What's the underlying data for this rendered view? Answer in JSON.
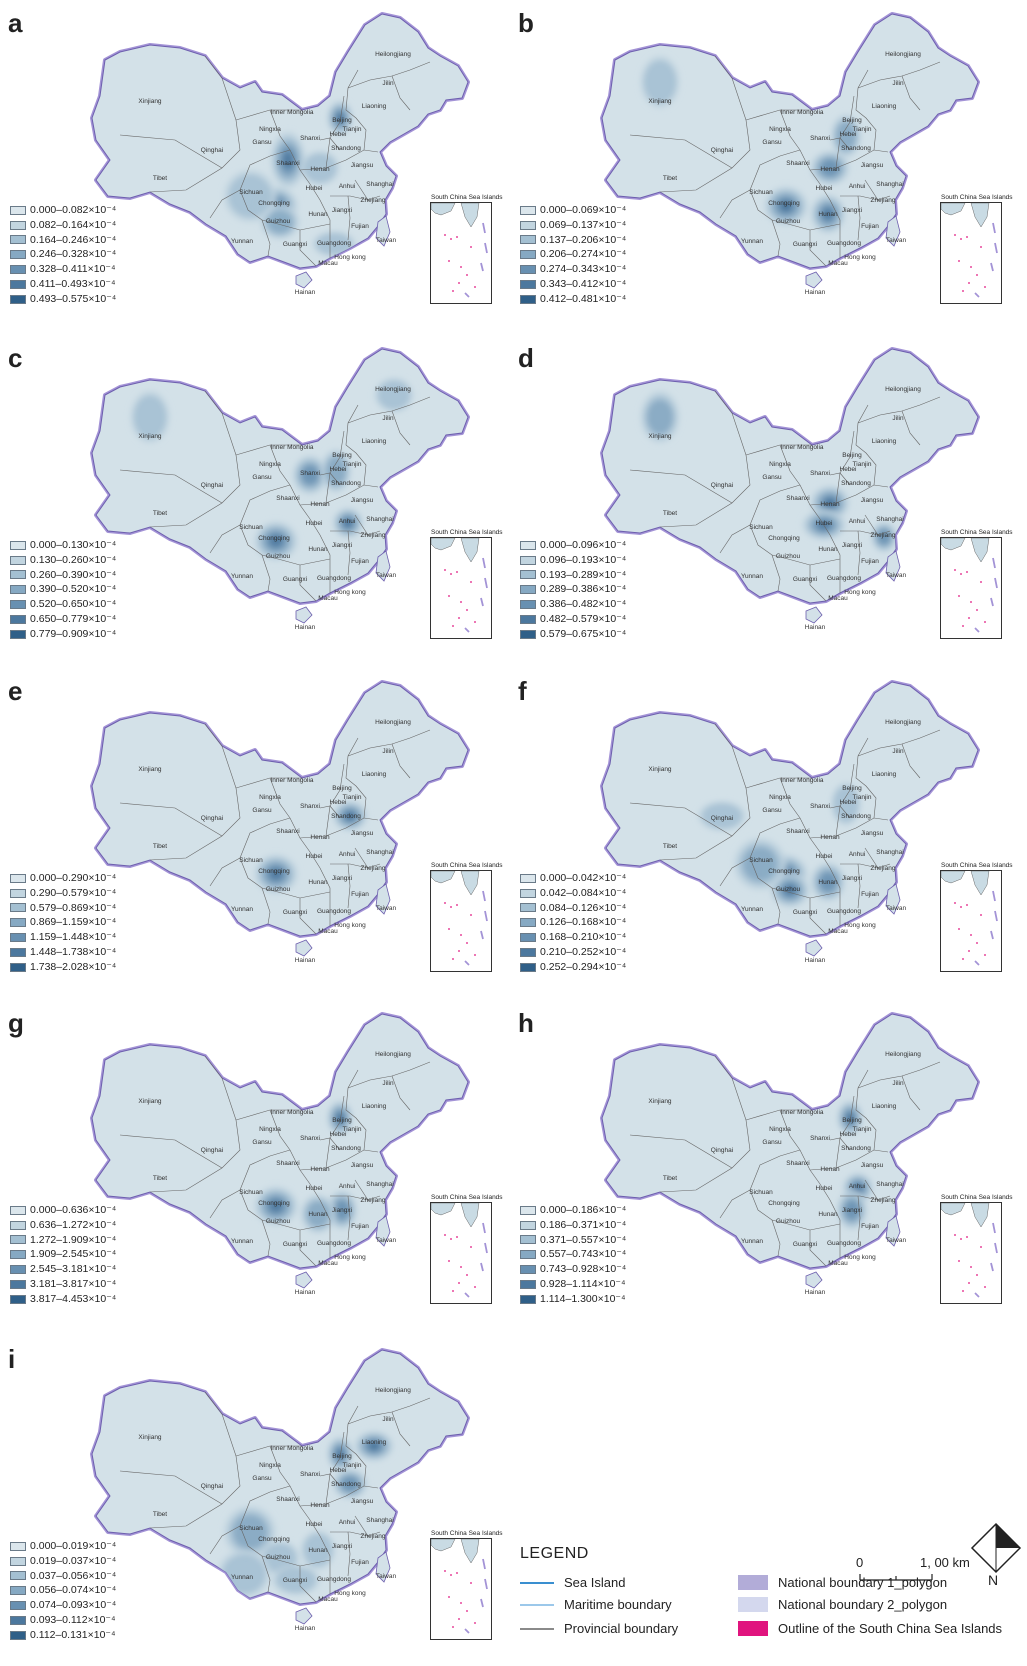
{
  "provinces": [
    "Xinjiang",
    "Tibet",
    "Qinghai",
    "Gansu",
    "Inner Mongolia",
    "Ningxia",
    "Shaanxi",
    "Shanxi",
    "Hebei",
    "Beijing",
    "Tianjin",
    "Liaoning",
    "Jilin",
    "Heilongjiang",
    "Shandong",
    "Henan",
    "Jiangsu",
    "Shanghai",
    "Anhui",
    "Hubei",
    "Sichuan",
    "Chongqing",
    "Guizhou",
    "Yunnan",
    "Hunan",
    "Jiangxi",
    "Zhejiang",
    "Fujian",
    "Guangxi",
    "Guangdong",
    "Hong kong",
    "Macau",
    "Hainan",
    "Taiwan"
  ],
  "inset_title": "South China Sea Islands",
  "panels": [
    {
      "letter": "a",
      "legend": [
        "0.000–0.082×10⁻⁴",
        "0.082–0.164×10⁻⁴",
        "0.164–0.246×10⁻⁴",
        "0.246–0.328×10⁻⁴",
        "0.328–0.411×10⁻⁴",
        "0.411–0.493×10⁻⁴",
        "0.493–0.575×10⁻⁴"
      ],
      "hotspots": [
        "Beijing",
        "Shaanxi",
        "Chongqing",
        "Guizhou",
        "Sichuan",
        "Henan",
        "Guangdong"
      ]
    },
    {
      "letter": "b",
      "legend": [
        "0.000–0.069×10⁻⁴",
        "0.069–0.137×10⁻⁴",
        "0.137–0.206×10⁻⁴",
        "0.206–0.274×10⁻⁴",
        "0.274–0.343×10⁻⁴",
        "0.343–0.412×10⁻⁴",
        "0.412–0.481×10⁻⁴"
      ],
      "hotspots": [
        "Chongqing",
        "Hunan",
        "Henan",
        "Hebei",
        "Xinjiang"
      ]
    },
    {
      "letter": "c",
      "legend": [
        "0.000–0.130×10⁻⁴",
        "0.130–0.260×10⁻⁴",
        "0.260–0.390×10⁻⁴",
        "0.390–0.520×10⁻⁴",
        "0.520–0.650×10⁻⁴",
        "0.650–0.779×10⁻⁴",
        "0.779–0.909×10⁻⁴"
      ],
      "hotspots": [
        "Anhui",
        "Chongqing",
        "Shanxi",
        "Hebei",
        "Xinjiang",
        "Heilongjiang"
      ]
    },
    {
      "letter": "d",
      "legend": [
        "0.000–0.096×10⁻⁴",
        "0.096–0.193×10⁻⁴",
        "0.193–0.289×10⁻⁴",
        "0.289–0.386×10⁻⁴",
        "0.386–0.482×10⁻⁴",
        "0.482–0.579×10⁻⁴",
        "0.579–0.675×10⁻⁴"
      ],
      "hotspots": [
        "Henan",
        "Hubei",
        "Zhejiang",
        "Xinjiang"
      ]
    },
    {
      "letter": "e",
      "legend": [
        "0.000–0.290×10⁻⁴",
        "0.290–0.579×10⁻⁴",
        "0.579–0.869×10⁻⁴",
        "0.869–1.159×10⁻⁴",
        "1.159–1.448×10⁻⁴",
        "1.448–1.738×10⁻⁴",
        "1.738–2.028×10⁻⁴"
      ],
      "hotspots": [
        "Shandong",
        "Chongqing"
      ]
    },
    {
      "letter": "f",
      "legend": [
        "0.000–0.042×10⁻⁴",
        "0.042–0.084×10⁻⁴",
        "0.084–0.126×10⁻⁴",
        "0.126–0.168×10⁻⁴",
        "0.168–0.210×10⁻⁴",
        "0.210–0.252×10⁻⁴",
        "0.252–0.294×10⁻⁴"
      ],
      "hotspots": [
        "Chongqing",
        "Guizhou",
        "Hunan",
        "Sichuan",
        "Qinghai",
        "Hebei"
      ]
    },
    {
      "letter": "g",
      "legend": [
        "0.000–0.636×10⁻⁴",
        "0.636–1.272×10⁻⁴",
        "1.272–1.909×10⁻⁴",
        "1.909–2.545×10⁻⁴",
        "2.545–3.181×10⁻⁴",
        "3.181–3.817×10⁻⁴",
        "3.817–4.453×10⁻⁴"
      ],
      "hotspots": [
        "Beijing",
        "Chongqing",
        "Jiangxi",
        "Hunan"
      ]
    },
    {
      "letter": "h",
      "legend": [
        "0.000–0.186×10⁻⁴",
        "0.186–0.371×10⁻⁴",
        "0.371–0.557×10⁻⁴",
        "0.557–0.743×10⁻⁴",
        "0.743–0.928×10⁻⁴",
        "0.928–1.114×10⁻⁴",
        "1.114–1.300×10⁻⁴"
      ],
      "hotspots": [
        "Beijing",
        "Anhui",
        "Jiangxi"
      ]
    },
    {
      "letter": "i",
      "legend": [
        "0.000–0.019×10⁻⁴",
        "0.019–0.037×10⁻⁴",
        "0.037–0.056×10⁻⁴",
        "0.056–0.074×10⁻⁴",
        "0.074–0.093×10⁻⁴",
        "0.093–0.112×10⁻⁴",
        "0.112–0.131×10⁻⁴"
      ],
      "hotspots": [
        "Liaoning",
        "Beijing",
        "Shandong",
        "Sichuan",
        "Guizhou",
        "Guangxi",
        "Hunan",
        "Yunnan"
      ]
    }
  ],
  "colors": {
    "shades": [
      "#dbe6ec",
      "#c2d5e0",
      "#a4c0d2",
      "#86a9c3",
      "#6890b1",
      "#4c789e",
      "#2f5f88"
    ],
    "land": "#d3e1e8",
    "national_boundary": "#a393d6"
  },
  "main_legend": {
    "title": "LEGEND",
    "items": [
      {
        "label": "Sea Island",
        "kind": "line",
        "color": "#3a8fd0"
      },
      {
        "label": "Maritime boundary",
        "kind": "line",
        "color": "#9cc8ea"
      },
      {
        "label": "Provincial boundary",
        "kind": "line",
        "color": "#8a8a8a"
      },
      {
        "label": "National boundary 1_polygon",
        "kind": "box",
        "color": "#b2acd8"
      },
      {
        "label": "National boundary 2_polygon",
        "kind": "box",
        "color": "#d4d8ee"
      },
      {
        "label": "Outline of the South China Sea Islands",
        "kind": "box",
        "color": "#e0147e"
      }
    ]
  },
  "scale": {
    "zero": "0",
    "value": "1, 00 km"
  },
  "north": "N"
}
